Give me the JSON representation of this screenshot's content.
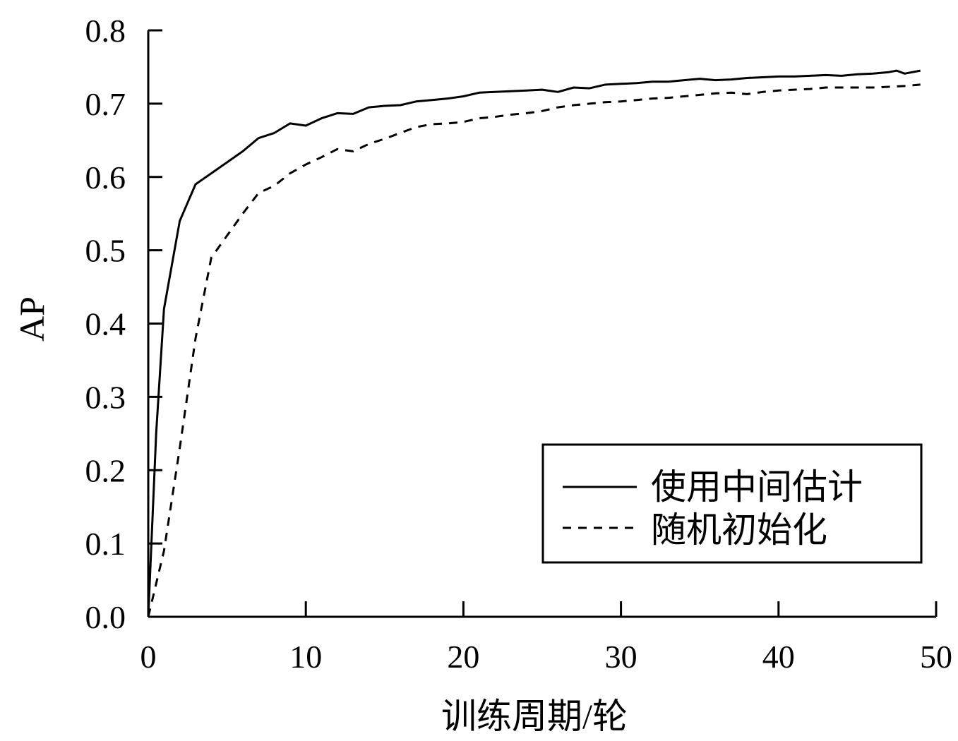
{
  "chart_data": {
    "type": "line",
    "title": "",
    "xlabel": "训练周期/轮",
    "ylabel": "AP",
    "xlim": [
      0,
      50
    ],
    "ylim": [
      0.0,
      0.8
    ],
    "xticks": [
      0,
      10,
      20,
      30,
      40,
      50
    ],
    "xtick_labels": [
      "0",
      "10",
      "20",
      "30",
      "40",
      "50"
    ],
    "yticks": [
      0.0,
      0.1,
      0.2,
      0.3,
      0.4,
      0.5,
      0.6,
      0.7,
      0.8
    ],
    "ytick_labels": [
      "0.0",
      "0.1",
      "0.2",
      "0.3",
      "0.4",
      "0.5",
      "0.6",
      "0.7",
      "0.8"
    ],
    "grid": false,
    "legend_position": "bottom-right",
    "series": [
      {
        "name": "使用中间估计",
        "line_style": "solid",
        "color": "#000000",
        "points": [
          [
            0,
            0.0
          ],
          [
            0.5,
            0.25
          ],
          [
            1,
            0.42
          ],
          [
            2,
            0.54
          ],
          [
            3,
            0.59
          ],
          [
            4,
            0.605
          ],
          [
            5,
            0.62
          ],
          [
            6,
            0.635
          ],
          [
            7,
            0.653
          ],
          [
            8,
            0.66
          ],
          [
            9,
            0.673
          ],
          [
            10,
            0.67
          ],
          [
            11,
            0.68
          ],
          [
            12,
            0.687
          ],
          [
            13,
            0.686
          ],
          [
            14,
            0.695
          ],
          [
            15,
            0.697
          ],
          [
            16,
            0.698
          ],
          [
            17,
            0.703
          ],
          [
            18,
            0.705
          ],
          [
            19,
            0.707
          ],
          [
            20,
            0.71
          ],
          [
            21,
            0.715
          ],
          [
            22,
            0.716
          ],
          [
            23,
            0.717
          ],
          [
            24,
            0.718
          ],
          [
            25,
            0.719
          ],
          [
            26,
            0.716
          ],
          [
            27,
            0.722
          ],
          [
            28,
            0.721
          ],
          [
            29,
            0.726
          ],
          [
            30,
            0.727
          ],
          [
            31,
            0.728
          ],
          [
            32,
            0.73
          ],
          [
            33,
            0.73
          ],
          [
            34,
            0.732
          ],
          [
            35,
            0.734
          ],
          [
            36,
            0.732
          ],
          [
            37,
            0.733
          ],
          [
            38,
            0.735
          ],
          [
            39,
            0.736
          ],
          [
            40,
            0.737
          ],
          [
            41,
            0.737
          ],
          [
            42,
            0.738
          ],
          [
            43,
            0.739
          ],
          [
            44,
            0.738
          ],
          [
            45,
            0.74
          ],
          [
            46,
            0.741
          ],
          [
            47,
            0.743
          ],
          [
            47.5,
            0.745
          ],
          [
            48,
            0.741
          ],
          [
            49,
            0.745
          ]
        ]
      },
      {
        "name": "随机初始化",
        "line_style": "dashed",
        "color": "#000000",
        "points": [
          [
            0,
            0.0
          ],
          [
            1,
            0.09
          ],
          [
            2,
            0.23
          ],
          [
            3,
            0.38
          ],
          [
            4,
            0.49
          ],
          [
            5,
            0.52
          ],
          [
            6,
            0.55
          ],
          [
            7,
            0.578
          ],
          [
            8,
            0.588
          ],
          [
            9,
            0.605
          ],
          [
            10,
            0.617
          ],
          [
            11,
            0.627
          ],
          [
            12,
            0.638
          ],
          [
            13,
            0.635
          ],
          [
            14,
            0.645
          ],
          [
            15,
            0.652
          ],
          [
            16,
            0.66
          ],
          [
            17,
            0.668
          ],
          [
            18,
            0.672
          ],
          [
            19,
            0.673
          ],
          [
            20,
            0.675
          ],
          [
            21,
            0.68
          ],
          [
            22,
            0.682
          ],
          [
            23,
            0.685
          ],
          [
            24,
            0.687
          ],
          [
            25,
            0.69
          ],
          [
            26,
            0.695
          ],
          [
            27,
            0.698
          ],
          [
            28,
            0.7
          ],
          [
            29,
            0.702
          ],
          [
            30,
            0.703
          ],
          [
            31,
            0.705
          ],
          [
            32,
            0.707
          ],
          [
            33,
            0.708
          ],
          [
            34,
            0.71
          ],
          [
            35,
            0.712
          ],
          [
            36,
            0.714
          ],
          [
            37,
            0.715
          ],
          [
            38,
            0.713
          ],
          [
            39,
            0.716
          ],
          [
            40,
            0.718
          ],
          [
            41,
            0.719
          ],
          [
            42,
            0.72
          ],
          [
            43,
            0.722
          ],
          [
            44,
            0.722
          ],
          [
            45,
            0.722
          ],
          [
            46,
            0.722
          ],
          [
            47,
            0.723
          ],
          [
            48,
            0.724
          ],
          [
            49,
            0.726
          ]
        ]
      }
    ]
  }
}
